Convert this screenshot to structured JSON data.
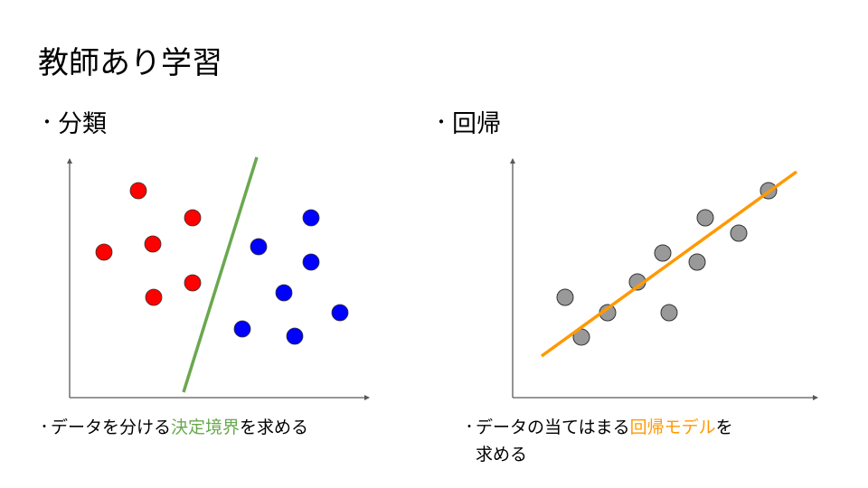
{
  "title": "教師あり学習",
  "bullet_symbol": "・",
  "classification": {
    "heading": "分類",
    "caption_before": "データを分ける",
    "caption_highlight": "決定境界",
    "caption_after": "を求める",
    "highlight_color": "#6aa84f",
    "class_a_color": "#ff0000",
    "class_b_color": "#0000ff"
  },
  "regression": {
    "heading": "回帰",
    "caption_before": "データの当てはまる",
    "caption_highlight": "回帰モデル",
    "caption_after": "を",
    "caption_line2": "求める",
    "highlight_color": "#ff9900",
    "point_color": "#999999"
  }
}
